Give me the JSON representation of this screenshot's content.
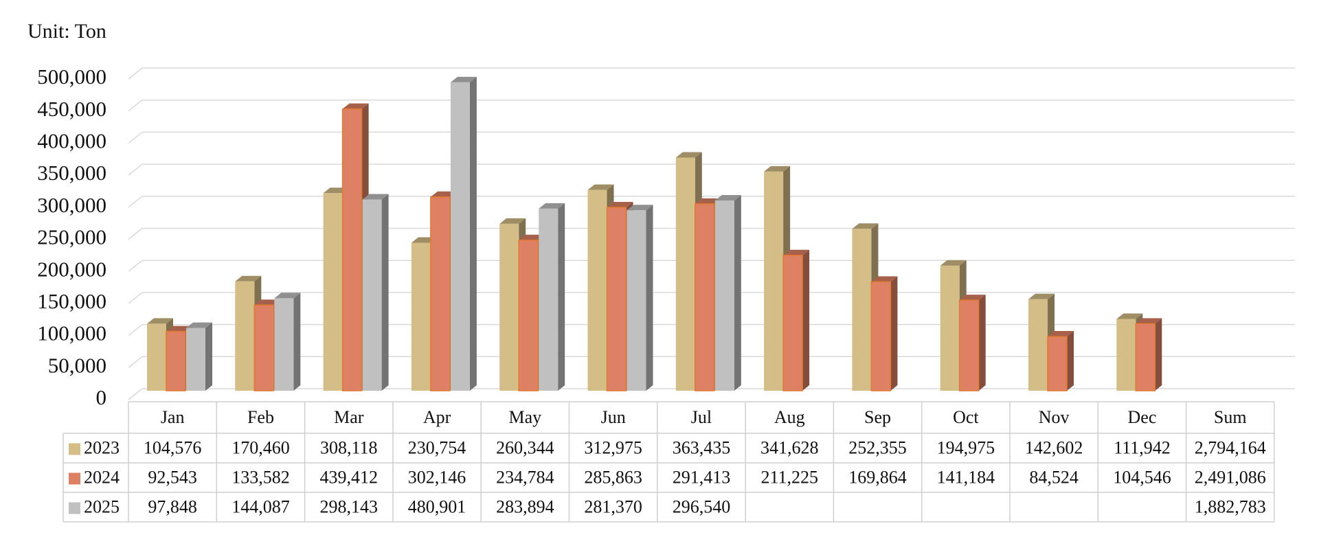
{
  "chart_data": {
    "type": "bar",
    "title": "Unit: Ton",
    "categories": [
      "Jan",
      "Feb",
      "Mar",
      "Apr",
      "May",
      "Jun",
      "Jul",
      "Aug",
      "Sep",
      "Oct",
      "Nov",
      "Dec"
    ],
    "sum_header": "Sum",
    "series": [
      {
        "name": "2023",
        "color": "#d4bd86",
        "values": [
          104576,
          170460,
          308118,
          230754,
          260344,
          312975,
          363435,
          341628,
          252355,
          194975,
          142602,
          111942
        ],
        "value_labels": [
          "104,576",
          "170,460",
          "308,118",
          "230,754",
          "260,344",
          "312,975",
          "363,435",
          "341,628",
          "252,355",
          "194,975",
          "142,602",
          "111,942"
        ],
        "total": 2794164,
        "total_label": "2,794,164"
      },
      {
        "name": "2024",
        "color": "#de8063",
        "values": [
          92543,
          133582,
          439412,
          302146,
          234784,
          285863,
          291413,
          211225,
          169864,
          141184,
          84524,
          104546
        ],
        "value_labels": [
          "92,543",
          "133,582",
          "439,412",
          "302,146",
          "234,784",
          "285,863",
          "291,413",
          "211,225",
          "169,864",
          "141,184",
          "84,524",
          "104,546"
        ],
        "total": 2491086,
        "total_label": "2,491,086"
      },
      {
        "name": "2025",
        "color": "#c0c0c0",
        "values": [
          97848,
          144087,
          298143,
          480901,
          283894,
          281370,
          296540,
          null,
          null,
          null,
          null,
          null
        ],
        "value_labels": [
          "97,848",
          "144,087",
          "298,143",
          "480,901",
          "283,894",
          "281,370",
          "296,540",
          null,
          null,
          null,
          null,
          null
        ],
        "total": 1882783,
        "total_label": "1,882,783"
      }
    ],
    "ylim": [
      0,
      500000
    ],
    "yticks": [
      0,
      {
        "value": 50000,
        "label": "50,000"
      },
      {
        "value": 100000,
        "label": "100,000"
      },
      {
        "value": 150000,
        "label": "150,000"
      },
      {
        "value": 200000,
        "label": "200,000"
      },
      {
        "value": 250000,
        "label": "250,000"
      },
      {
        "value": 300000,
        "label": "300,000"
      },
      {
        "value": 350000,
        "label": "350,000"
      },
      {
        "value": 400000,
        "label": "400,000"
      },
      {
        "value": 450000,
        "label": "450,000"
      },
      {
        "value": 500000,
        "label": "500,000"
      }
    ],
    "grid": true
  }
}
